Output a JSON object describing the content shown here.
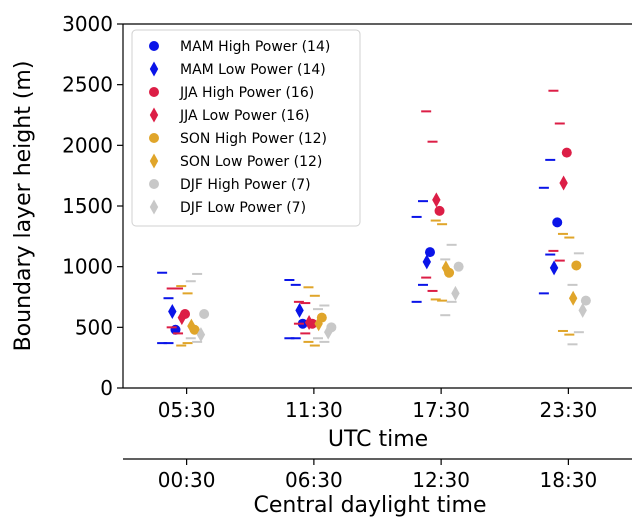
{
  "chart_data": {
    "type": "scatter",
    "ylabel": "Boundary layer height (m)",
    "xlabel": "UTC time",
    "x2label": "Central daylight time",
    "categories": [
      "05:30",
      "11:30",
      "17:30",
      "23:30"
    ],
    "categories_secondary": [
      "00:30",
      "06:30",
      "12:30",
      "18:30"
    ],
    "ylim": [
      0,
      3000
    ],
    "yticks": [
      0,
      500,
      1000,
      1500,
      2000,
      2500,
      3000
    ],
    "legend_position": "top-left",
    "series": [
      {
        "name": "MAM High Power (14)",
        "marker": "circle",
        "color": "#0a14e8",
        "offset": -0.35,
        "values": [
          480,
          530,
          1120,
          1365
        ],
        "q_inner": [
          [
            370,
            740
          ],
          [
            410,
            850
          ],
          [
            850,
            1540
          ],
          [
            1100,
            1880
          ]
        ],
        "q_outer": [
          [
            370,
            950
          ],
          [
            410,
            890
          ],
          [
            710,
            1410
          ],
          [
            780,
            1650
          ]
        ]
      },
      {
        "name": "MAM Low Power (14)",
        "marker": "diamond",
        "color": "#0a14e8",
        "offset": -0.45,
        "values": [
          630,
          640,
          1040,
          990
        ],
        "q_inner": [],
        "q_outer": []
      },
      {
        "name": "JJA High Power (16)",
        "marker": "circle",
        "color": "#dc1e46",
        "offset": -0.05,
        "values": [
          610,
          530,
          1460,
          1940
        ],
        "q_inner": [
          [
            450,
            820
          ],
          [
            450,
            700
          ],
          [
            800,
            2030
          ],
          [
            1050,
            2180
          ]
        ],
        "q_outer": [
          [
            500,
            820
          ],
          [
            530,
            710
          ],
          [
            910,
            2280
          ],
          [
            1130,
            2450
          ]
        ]
      },
      {
        "name": "JJA Low Power (16)",
        "marker": "diamond",
        "color": "#dc1e46",
        "offset": -0.15,
        "values": [
          580,
          540,
          1550,
          1690
        ],
        "q_inner": [],
        "q_outer": []
      },
      {
        "name": "SON High Power (12)",
        "marker": "circle",
        "color": "#e0a52a",
        "offset": 0.25,
        "values": [
          480,
          580,
          950,
          1010
        ],
        "q_inner": [
          [
            370,
            780
          ],
          [
            350,
            760
          ],
          [
            720,
            1350
          ],
          [
            440,
            1240
          ]
        ],
        "q_outer": [
          [
            350,
            840
          ],
          [
            380,
            830
          ],
          [
            730,
            1380
          ],
          [
            470,
            1270
          ]
        ]
      },
      {
        "name": "SON Low Power (12)",
        "marker": "diamond",
        "color": "#e0a52a",
        "offset": 0.15,
        "values": [
          510,
          530,
          990,
          740
        ],
        "q_inner": [],
        "q_outer": []
      },
      {
        "name": "DJF High Power (7)",
        "marker": "circle",
        "color": "#c8c8c8",
        "offset": 0.55,
        "values": [
          610,
          500,
          1000,
          720
        ],
        "q_inner": [
          [
            380,
            940
          ],
          [
            380,
            680
          ],
          [
            710,
            1180
          ],
          [
            460,
            1110
          ]
        ],
        "q_outer": [
          [
            410,
            880
          ],
          [
            410,
            650
          ],
          [
            600,
            1060
          ],
          [
            360,
            850
          ]
        ]
      },
      {
        "name": "DJF Low Power (7)",
        "marker": "diamond",
        "color": "#c8c8c8",
        "offset": 0.45,
        "values": [
          440,
          460,
          780,
          640
        ],
        "q_inner": [],
        "q_outer": []
      }
    ]
  }
}
